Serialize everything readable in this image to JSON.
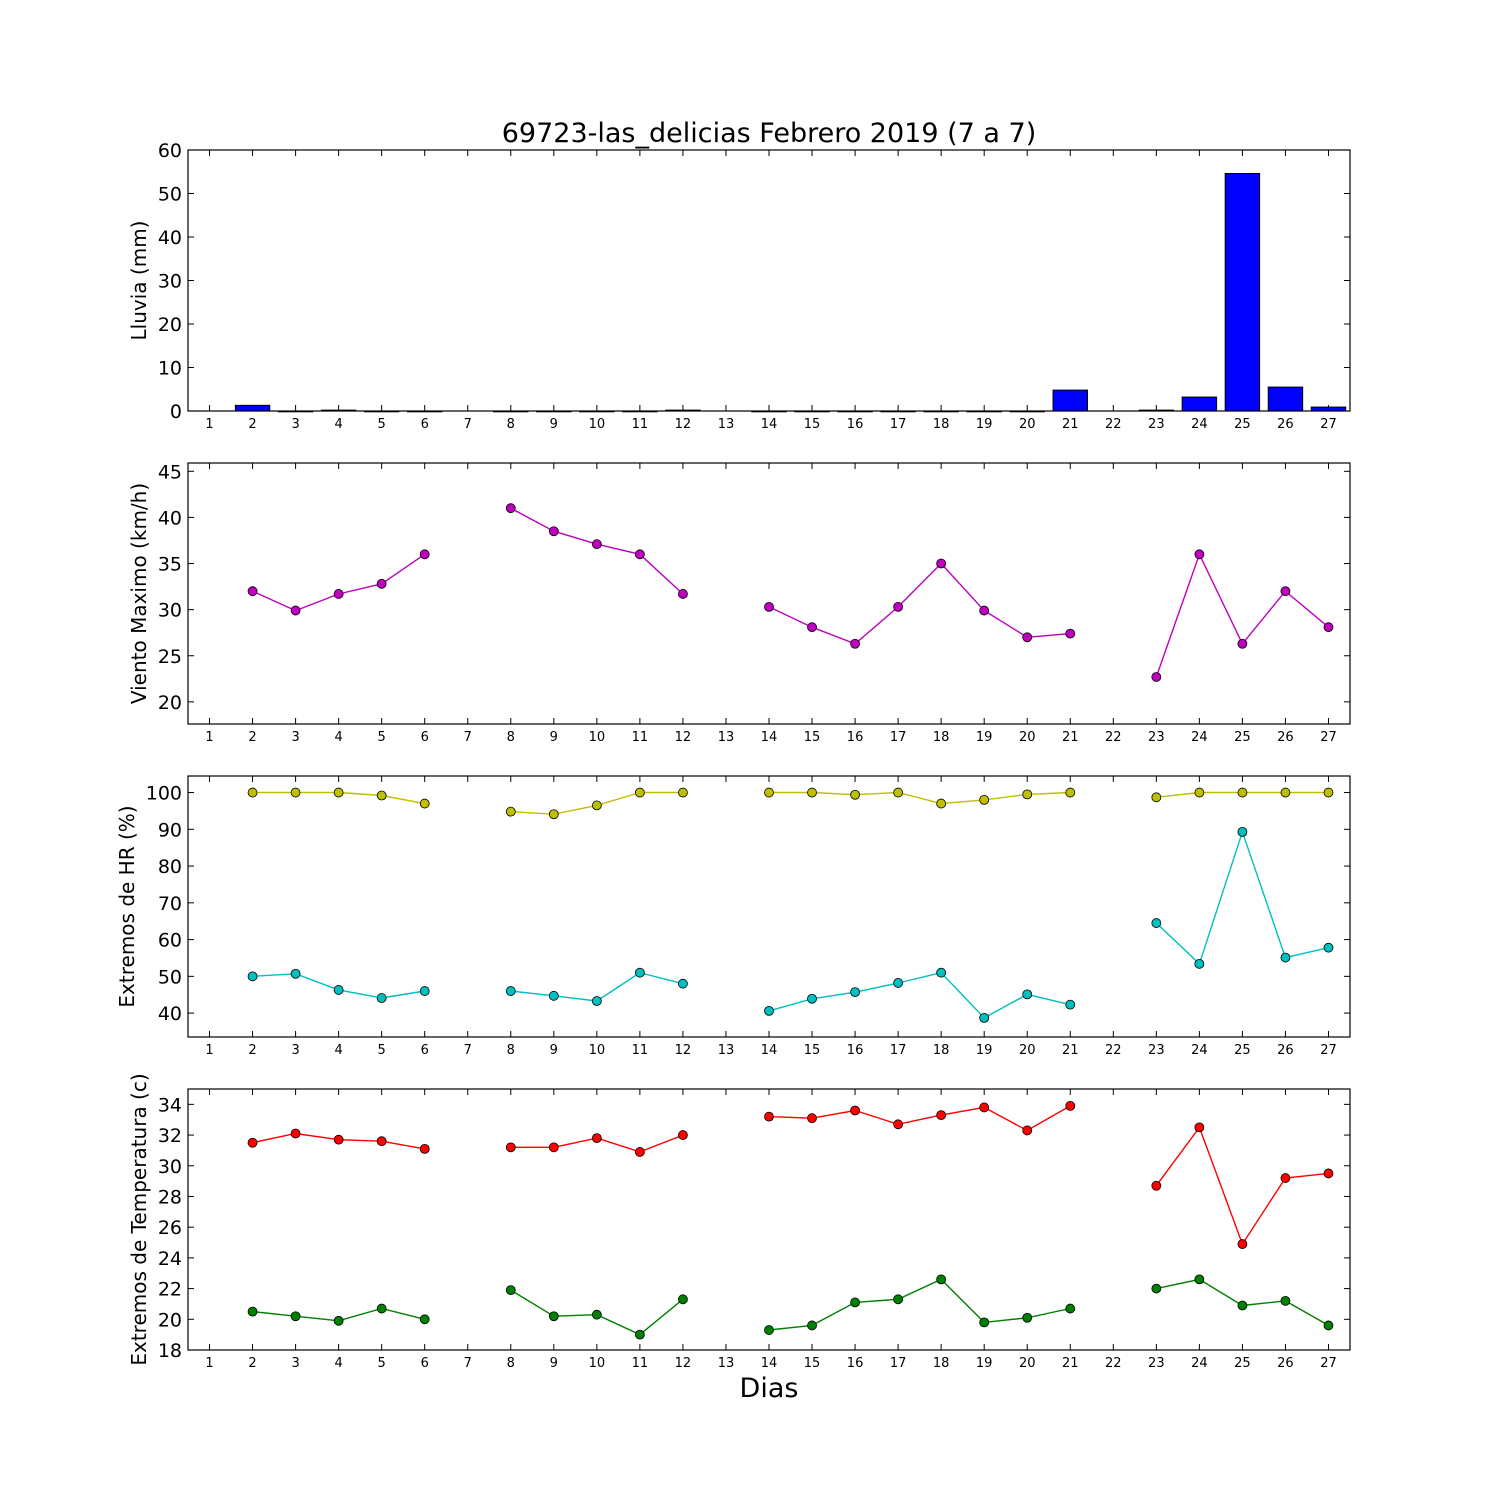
{
  "title": "69723-las_delicias Febrero 2019  (7 a 7)",
  "xlabel": "Dias",
  "colors": {
    "bar": "#0000ff",
    "wind": "#bf00bf",
    "hr_max": "#bfbf00",
    "hr_min": "#00bfbf",
    "temp_max": "#ff0000",
    "temp_min": "#008000"
  },
  "chart_data": [
    {
      "type": "bar",
      "ylabel": "Lluvia (mm)",
      "ylim": [
        0,
        60
      ],
      "yticks": [
        0,
        10,
        20,
        30,
        40,
        50,
        60
      ],
      "x": [
        1,
        2,
        3,
        4,
        5,
        6,
        7,
        8,
        9,
        10,
        11,
        12,
        13,
        14,
        15,
        16,
        17,
        18,
        19,
        20,
        21,
        22,
        23,
        24,
        25,
        26,
        27
      ],
      "series": [
        {
          "color": "#0000ff",
          "values": [
            null,
            1.3,
            0,
            0.2,
            0,
            0,
            null,
            0,
            0,
            0,
            0,
            0.2,
            null,
            0,
            0,
            0,
            0,
            0,
            0,
            0,
            4.8,
            null,
            0.2,
            3.2,
            54.6,
            5.5,
            0.9
          ]
        }
      ]
    },
    {
      "type": "line",
      "ylabel": "Viento Maximo (km/h)",
      "ylim": [
        17.6,
        45.9
      ],
      "yticks": [
        20,
        25,
        30,
        35,
        40,
        45
      ],
      "x": [
        1,
        2,
        3,
        4,
        5,
        6,
        7,
        8,
        9,
        10,
        11,
        12,
        13,
        14,
        15,
        16,
        17,
        18,
        19,
        20,
        21,
        22,
        23,
        24,
        25,
        26,
        27
      ],
      "series": [
        {
          "color": "#bf00bf",
          "values": [
            null,
            32.0,
            29.9,
            31.7,
            32.8,
            36.0,
            null,
            41.0,
            38.5,
            37.1,
            36.0,
            31.7,
            null,
            30.3,
            28.1,
            26.3,
            30.3,
            35.0,
            29.9,
            27.0,
            27.4,
            null,
            22.7,
            36.0,
            26.3,
            32.0,
            28.1
          ]
        }
      ]
    },
    {
      "type": "line",
      "ylabel": "Extremos de HR (%)",
      "ylim": [
        33.5,
        104.5
      ],
      "yticks": [
        40,
        50,
        60,
        70,
        80,
        90,
        100
      ],
      "x": [
        1,
        2,
        3,
        4,
        5,
        6,
        7,
        8,
        9,
        10,
        11,
        12,
        13,
        14,
        15,
        16,
        17,
        18,
        19,
        20,
        21,
        22,
        23,
        24,
        25,
        26,
        27
      ],
      "series": [
        {
          "color": "#bfbf00",
          "values": [
            null,
            100,
            100,
            100,
            99.2,
            97,
            null,
            94.8,
            94.1,
            96.5,
            100,
            100,
            null,
            100,
            100,
            99.4,
            100,
            97,
            98,
            99.5,
            100,
            null,
            98.7,
            100,
            100,
            100,
            100
          ]
        },
        {
          "color": "#00bfbf",
          "values": [
            null,
            50,
            50.7,
            46.3,
            44.1,
            46,
            null,
            46,
            44.7,
            43.3,
            51,
            48,
            null,
            40.6,
            43.9,
            45.7,
            48.2,
            51,
            38.7,
            45.1,
            42.3,
            null,
            64.5,
            53.4,
            89.3,
            55.1,
            57.8
          ]
        }
      ]
    },
    {
      "type": "line",
      "ylabel": "Extremos de Temperatura (c)",
      "ylim": [
        18,
        35
      ],
      "yticks": [
        18,
        20,
        22,
        24,
        26,
        28,
        30,
        32,
        34
      ],
      "x": [
        1,
        2,
        3,
        4,
        5,
        6,
        7,
        8,
        9,
        10,
        11,
        12,
        13,
        14,
        15,
        16,
        17,
        18,
        19,
        20,
        21,
        22,
        23,
        24,
        25,
        26,
        27
      ],
      "series": [
        {
          "color": "#ff0000",
          "values": [
            null,
            31.5,
            32.1,
            31.7,
            31.6,
            31.1,
            null,
            31.2,
            31.2,
            31.8,
            30.9,
            32.0,
            null,
            33.2,
            33.1,
            33.6,
            32.7,
            33.3,
            33.8,
            32.3,
            33.9,
            null,
            28.7,
            32.5,
            24.9,
            29.2,
            29.5
          ]
        },
        {
          "color": "#008000",
          "values": [
            null,
            20.5,
            20.2,
            19.9,
            20.7,
            20.0,
            null,
            21.9,
            20.2,
            20.3,
            19.0,
            21.3,
            null,
            19.3,
            19.6,
            21.1,
            21.3,
            22.6,
            19.8,
            20.1,
            20.7,
            null,
            22.0,
            22.6,
            20.9,
            21.2,
            19.6
          ]
        }
      ]
    }
  ]
}
